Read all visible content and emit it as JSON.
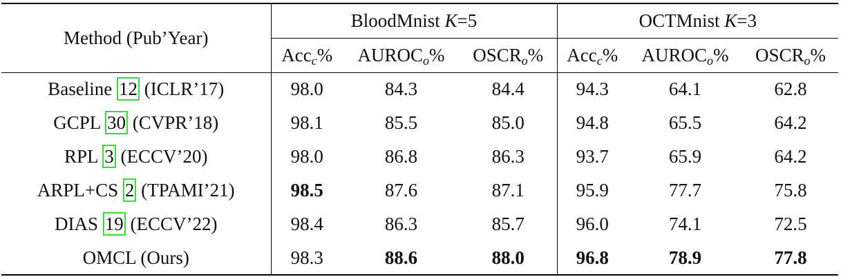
{
  "table": {
    "method_header": "Method (Pub’Year)",
    "groups": [
      {
        "name": "BloodMnist",
        "k_symbol": "K",
        "k_value": "=5"
      },
      {
        "name": "OCTMnist",
        "k_symbol": "K",
        "k_value": "=3"
      }
    ],
    "columns": [
      {
        "base": "Acc",
        "sub": "c",
        "suffix": "%"
      },
      {
        "base": "AUROC",
        "sub": "o",
        "suffix": "%"
      },
      {
        "base": "OSCR",
        "sub": "o",
        "suffix": "%"
      },
      {
        "base": "Acc",
        "sub": "c",
        "suffix": "%"
      },
      {
        "base": "AUROC",
        "sub": "o",
        "suffix": "%"
      },
      {
        "base": "OSCR",
        "sub": "o",
        "suffix": "%"
      }
    ],
    "rows": [
      {
        "method": "Baseline",
        "ref": "12",
        "venue": "(ICLR’17)",
        "values": [
          "98.0",
          "84.3",
          "84.4",
          "94.3",
          "64.1",
          "62.8"
        ],
        "bold": []
      },
      {
        "method": "GCPL",
        "ref": "30",
        "venue": "(CVPR’18)",
        "values": [
          "98.1",
          "85.5",
          "85.0",
          "94.8",
          "65.5",
          "64.2"
        ],
        "bold": []
      },
      {
        "method": "RPL",
        "ref": "3",
        "venue": "(ECCV’20)",
        "values": [
          "98.0",
          "86.8",
          "86.3",
          "93.7",
          "65.9",
          "64.2"
        ],
        "bold": []
      },
      {
        "method": "ARPL+CS",
        "ref": "2",
        "venue": "(TPAMI’21)",
        "values": [
          "98.5",
          "87.6",
          "87.1",
          "95.9",
          "77.7",
          "75.8"
        ],
        "bold": [
          0
        ]
      },
      {
        "method": "DIAS",
        "ref": "19",
        "venue": "(ECCV’22)",
        "values": [
          "98.4",
          "86.3",
          "85.7",
          "96.0",
          "74.1",
          "72.5"
        ],
        "bold": []
      },
      {
        "method": "OMCL",
        "ref": null,
        "venue": "(Ours)",
        "values": [
          "98.3",
          "88.6",
          "88.0",
          "96.8",
          "78.9",
          "77.8"
        ],
        "bold": [
          1,
          2,
          3,
          4,
          5
        ]
      }
    ]
  }
}
